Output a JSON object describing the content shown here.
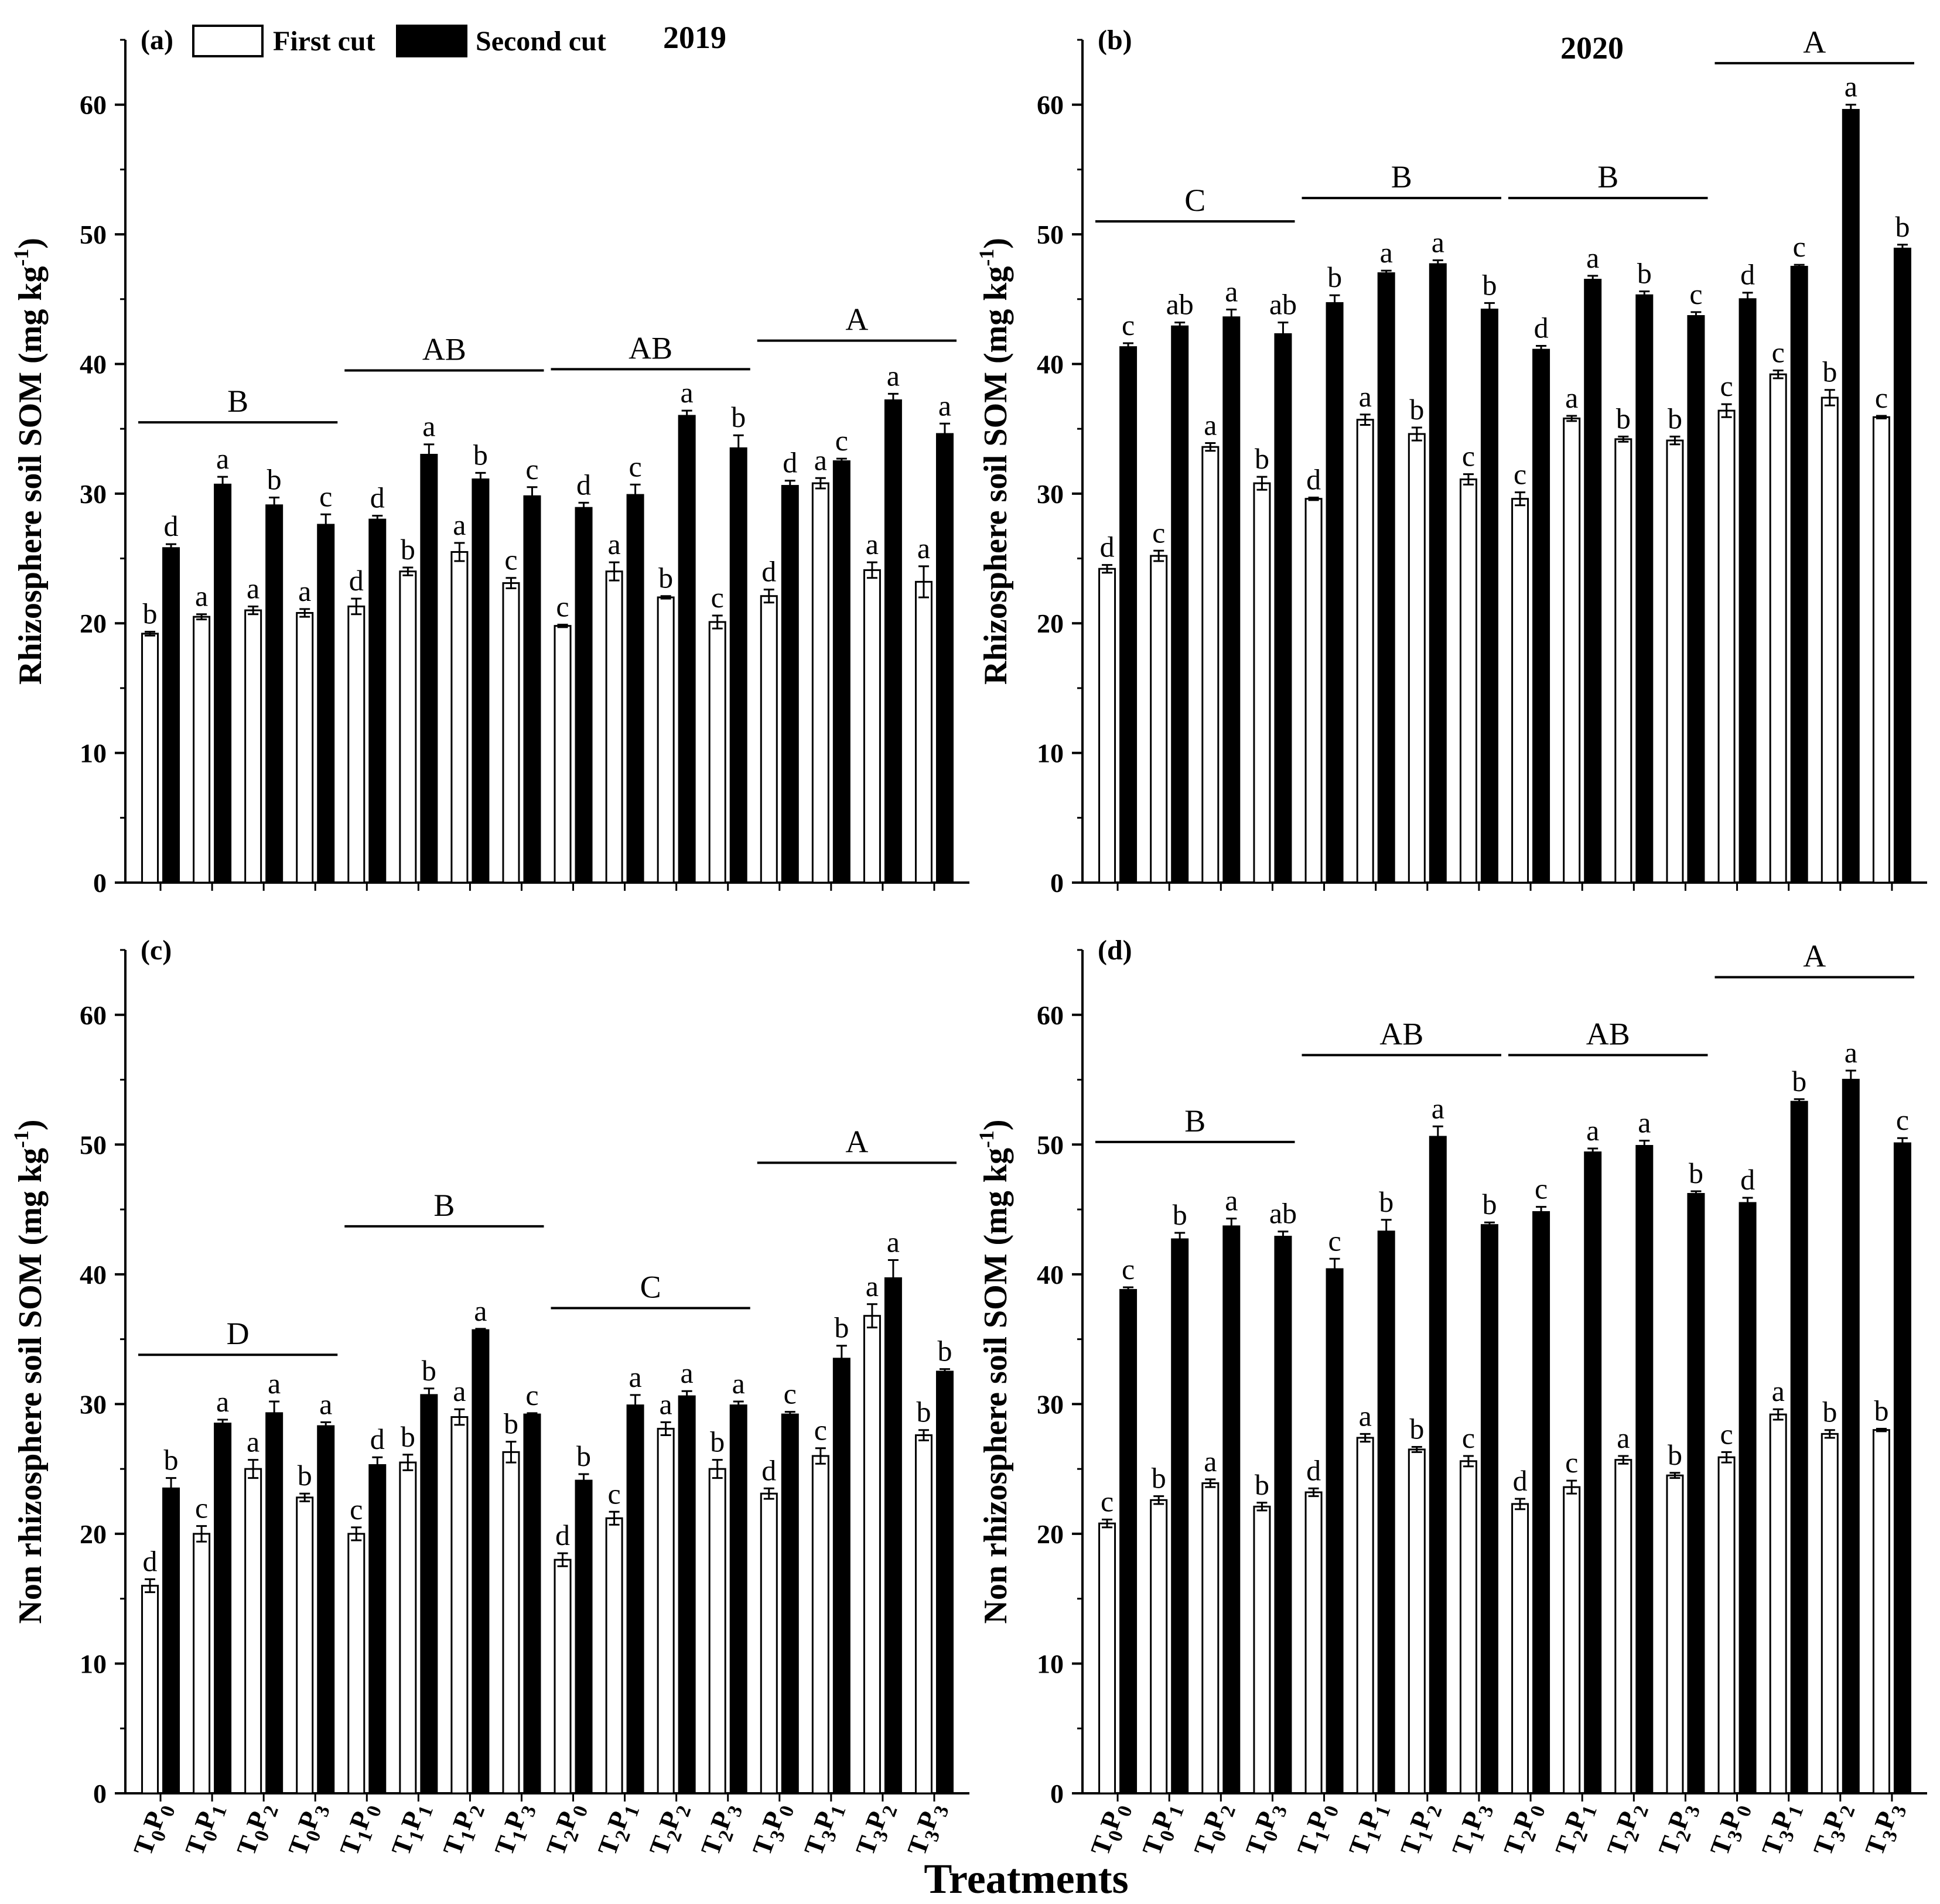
{
  "figure": {
    "xlabel": "Treatments",
    "legend": [
      {
        "label": "First cut",
        "color": "#ffffff"
      },
      {
        "label": "Second cut",
        "color": "#000000"
      }
    ],
    "categories": [
      [
        "T",
        "0",
        "P",
        "0"
      ],
      [
        "T",
        "0",
        "P",
        "1"
      ],
      [
        "T",
        "0",
        "P",
        "2"
      ],
      [
        "T",
        "0",
        "P",
        "3"
      ],
      [
        "T",
        "1",
        "P",
        "0"
      ],
      [
        "T",
        "1",
        "P",
        "1"
      ],
      [
        "T",
        "1",
        "P",
        "2"
      ],
      [
        "T",
        "1",
        "P",
        "3"
      ],
      [
        "T",
        "2",
        "P",
        "0"
      ],
      [
        "T",
        "2",
        "P",
        "1"
      ],
      [
        "T",
        "2",
        "P",
        "2"
      ],
      [
        "T",
        "2",
        "P",
        "3"
      ],
      [
        "T",
        "3",
        "P",
        "0"
      ],
      [
        "T",
        "3",
        "P",
        "1"
      ],
      [
        "T",
        "3",
        "P",
        "2"
      ],
      [
        "T",
        "3",
        "P",
        "3"
      ]
    ]
  },
  "chart_data": [
    {
      "type": "bar",
      "panel": "(a)",
      "year": "2019",
      "ylabel": "Rhizosphere soil SOM (mg kg-1)",
      "ylim": [
        0,
        65
      ],
      "yticks": [
        0,
        10,
        20,
        30,
        40,
        50,
        60
      ],
      "categories": [
        "T0P0",
        "T0P1",
        "T0P2",
        "T0P3",
        "T1P0",
        "T1P1",
        "T1P2",
        "T1P3",
        "T2P0",
        "T2P1",
        "T2P2",
        "T2P3",
        "T3P0",
        "T3P1",
        "T3P2",
        "T3P3"
      ],
      "series": [
        {
          "name": "First cut",
          "values": [
            19.2,
            20.5,
            21.0,
            20.8,
            21.3,
            24.0,
            25.5,
            23.1,
            19.8,
            24.0,
            22.0,
            20.1,
            22.1,
            30.8,
            24.1,
            23.2
          ],
          "errors": [
            0.15,
            0.2,
            0.3,
            0.3,
            0.6,
            0.3,
            0.7,
            0.4,
            0.1,
            0.7,
            0.1,
            0.5,
            0.5,
            0.4,
            0.6,
            1.2
          ],
          "letters": [
            "b",
            "a",
            "a",
            "a",
            "d",
            "b",
            "a",
            "c",
            "c",
            "a",
            "b",
            "c",
            "d",
            "a",
            "a",
            "a"
          ]
        },
        {
          "name": "Second cut",
          "values": [
            25.8,
            30.7,
            29.1,
            27.6,
            28.0,
            33.0,
            31.1,
            29.8,
            28.9,
            29.9,
            36.0,
            33.5,
            30.6,
            32.5,
            37.2,
            34.6
          ],
          "errors": [
            0.3,
            0.6,
            0.6,
            0.8,
            0.3,
            0.8,
            0.5,
            0.7,
            0.4,
            0.8,
            0.4,
            1.0,
            0.4,
            0.2,
            0.5,
            0.8
          ],
          "letters": [
            "d",
            "a",
            "b",
            "c",
            "d",
            "a",
            "b",
            "c",
            "d",
            "c",
            "a",
            "b",
            "d",
            "c",
            "a",
            "a"
          ]
        }
      ],
      "groups": [
        {
          "label": "B",
          "level": 35.5
        },
        {
          "label": "AB",
          "level": 39.5
        },
        {
          "label": "AB",
          "level": 39.6
        },
        {
          "label": "A",
          "level": 41.8
        }
      ]
    },
    {
      "type": "bar",
      "panel": "(b)",
      "year": "2020",
      "ylabel": "Rhizosphere soil SOM (mg kg-1)",
      "ylim": [
        0,
        65
      ],
      "yticks": [
        0,
        10,
        20,
        30,
        40,
        50,
        60
      ],
      "categories": [
        "T0P0",
        "T0P1",
        "T0P2",
        "T0P3",
        "T1P0",
        "T1P1",
        "T1P2",
        "T1P3",
        "T2P0",
        "T2P1",
        "T2P2",
        "T2P3",
        "T3P0",
        "T3P1",
        "T3P2",
        "T3P3"
      ],
      "series": [
        {
          "name": "First cut",
          "values": [
            24.2,
            25.2,
            33.6,
            30.8,
            29.6,
            35.7,
            34.6,
            31.1,
            29.6,
            35.8,
            34.2,
            34.1,
            36.4,
            39.2,
            37.4,
            35.9
          ],
          "errors": [
            0.3,
            0.4,
            0.3,
            0.5,
            0.1,
            0.4,
            0.5,
            0.4,
            0.5,
            0.2,
            0.2,
            0.3,
            0.5,
            0.3,
            0.6,
            0.1
          ],
          "letters": [
            "d",
            "c",
            "a",
            "b",
            "d",
            "a",
            "b",
            "c",
            "c",
            "a",
            "b",
            "b",
            "c",
            "c",
            "b",
            "c"
          ]
        },
        {
          "name": "Second cut",
          "values": [
            41.3,
            42.9,
            43.6,
            42.3,
            44.7,
            47.0,
            47.7,
            44.2,
            41.1,
            46.5,
            45.3,
            43.7,
            45.0,
            47.5,
            59.6,
            48.9
          ],
          "errors": [
            0.3,
            0.3,
            0.6,
            0.9,
            0.6,
            0.2,
            0.3,
            0.5,
            0.3,
            0.3,
            0.3,
            0.3,
            0.5,
            0.15,
            0.4,
            0.3
          ],
          "letters": [
            "c",
            "ab",
            "a",
            "ab",
            "b",
            "a",
            "a",
            "b",
            "d",
            "a",
            "b",
            "c",
            "d",
            "c",
            "a",
            "b"
          ]
        }
      ],
      "groups": [
        {
          "label": "C",
          "level": 51.0
        },
        {
          "label": "B",
          "level": 52.8
        },
        {
          "label": "B",
          "level": 52.8
        },
        {
          "label": "A",
          "level": 63.2
        }
      ]
    },
    {
      "type": "bar",
      "panel": "(c)",
      "ylabel": "Non rhizosphere soil SOM (mg kg-1)",
      "ylim": [
        0,
        65
      ],
      "yticks": [
        0,
        10,
        20,
        30,
        40,
        50,
        60
      ],
      "categories": [
        "T0P0",
        "T0P1",
        "T0P2",
        "T0P3",
        "T1P0",
        "T1P1",
        "T1P2",
        "T1P3",
        "T2P0",
        "T2P1",
        "T2P2",
        "T2P3",
        "T3P0",
        "T3P1",
        "T3P2",
        "T3P3"
      ],
      "series": [
        {
          "name": "First cut",
          "values": [
            16.0,
            20.0,
            25.0,
            22.8,
            20.0,
            25.5,
            29.0,
            26.3,
            18.0,
            21.2,
            28.1,
            25.0,
            23.1,
            26.0,
            36.8,
            27.6
          ],
          "errors": [
            0.5,
            0.6,
            0.7,
            0.3,
            0.5,
            0.6,
            0.6,
            0.8,
            0.5,
            0.5,
            0.5,
            0.7,
            0.4,
            0.6,
            0.9,
            0.4
          ],
          "letters": [
            "d",
            "c",
            "a",
            "b",
            "c",
            "b",
            "a",
            "b",
            "d",
            "c",
            "a",
            "b",
            "d",
            "c",
            "a",
            "b"
          ]
        },
        {
          "name": "Second cut",
          "values": [
            23.5,
            28.5,
            29.3,
            28.3,
            25.3,
            30.7,
            35.7,
            29.2,
            24.1,
            29.9,
            30.6,
            29.9,
            29.2,
            33.5,
            39.7,
            32.5
          ],
          "errors": [
            0.8,
            0.3,
            0.9,
            0.3,
            0.6,
            0.5,
            0.1,
            0.1,
            0.5,
            0.8,
            0.4,
            0.3,
            0.2,
            1.0,
            1.4,
            0.2
          ],
          "letters": [
            "b",
            "a",
            "a",
            "a",
            "d",
            "b",
            "a",
            "c",
            "b",
            "a",
            "a",
            "a",
            "c",
            "b",
            "a",
            "b"
          ]
        }
      ],
      "groups": [
        {
          "label": "D",
          "level": 33.8
        },
        {
          "label": "B",
          "level": 43.7
        },
        {
          "label": "C",
          "level": 37.4
        },
        {
          "label": "A",
          "level": 48.6
        }
      ]
    },
    {
      "type": "bar",
      "panel": "(d)",
      "ylabel": "Non rhizosphere soil SOM (mg kg-1)",
      "ylim": [
        0,
        65
      ],
      "yticks": [
        0,
        10,
        20,
        30,
        40,
        50,
        60
      ],
      "categories": [
        "T0P0",
        "T0P1",
        "T0P2",
        "T0P3",
        "T1P0",
        "T1P1",
        "T1P2",
        "T1P3",
        "T2P0",
        "T2P1",
        "T2P2",
        "T2P3",
        "T3P0",
        "T3P1",
        "T3P2",
        "T3P3"
      ],
      "series": [
        {
          "name": "First cut",
          "values": [
            20.8,
            22.6,
            23.9,
            22.1,
            23.2,
            27.4,
            26.5,
            25.6,
            22.3,
            23.6,
            25.7,
            24.5,
            25.9,
            29.2,
            27.7,
            28.0
          ],
          "errors": [
            0.3,
            0.3,
            0.3,
            0.3,
            0.3,
            0.3,
            0.2,
            0.4,
            0.4,
            0.5,
            0.3,
            0.2,
            0.4,
            0.4,
            0.3,
            0.1
          ],
          "letters": [
            "c",
            "b",
            "a",
            "b",
            "d",
            "a",
            "b",
            "c",
            "d",
            "c",
            "a",
            "b",
            "c",
            "a",
            "b",
            "b"
          ]
        },
        {
          "name": "Second cut",
          "values": [
            38.8,
            42.7,
            43.7,
            42.9,
            40.4,
            43.3,
            50.6,
            43.8,
            44.8,
            49.4,
            49.9,
            46.2,
            45.5,
            53.3,
            55.0,
            50.1
          ],
          "errors": [
            0.2,
            0.5,
            0.6,
            0.4,
            0.8,
            0.9,
            0.8,
            0.2,
            0.4,
            0.3,
            0.4,
            0.2,
            0.4,
            0.2,
            0.7,
            0.4
          ],
          "letters": [
            "c",
            "b",
            "a",
            "ab",
            "c",
            "b",
            "a",
            "b",
            "c",
            "a",
            "a",
            "b",
            "d",
            "b",
            "a",
            "c"
          ]
        }
      ],
      "groups": [
        {
          "label": "B",
          "level": 50.2
        },
        {
          "label": "AB",
          "level": 56.9
        },
        {
          "label": "AB",
          "level": 56.9
        },
        {
          "label": "A",
          "level": 62.9
        }
      ]
    }
  ]
}
